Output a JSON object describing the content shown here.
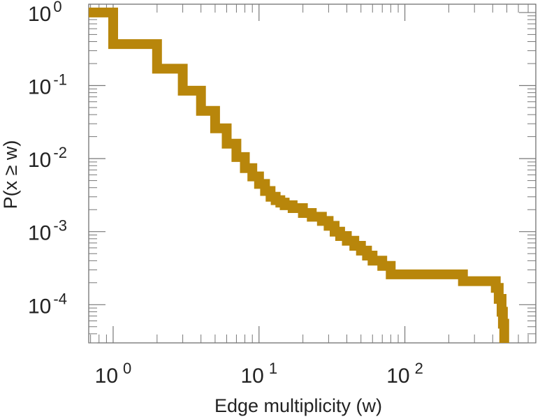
{
  "chart_data": {
    "type": "line",
    "step": true,
    "title": "",
    "xlabel": "Edge multiplicity (w)",
    "ylabel": "P(x ≥ w)",
    "xscale": "log",
    "yscale": "log",
    "xlim": [
      0.68,
      790
    ],
    "ylim": [
      3e-05,
      1.3
    ],
    "grid": false,
    "legend": "none",
    "line_color": "#b8860b",
    "x_ticks": [
      {
        "base": "10",
        "exp": "0",
        "value": 1
      },
      {
        "base": "10",
        "exp": "1",
        "value": 10
      },
      {
        "base": "10",
        "exp": "2",
        "value": 100
      }
    ],
    "y_ticks": [
      {
        "base": "10",
        "exp": "0",
        "value": 1
      },
      {
        "base": "10",
        "exp": "-1",
        "value": 0.1
      },
      {
        "base": "10",
        "exp": "-2",
        "value": 0.01
      },
      {
        "base": "10",
        "exp": "-3",
        "value": 0.001
      },
      {
        "base": "10",
        "exp": "-4",
        "value": 0.0001
      }
    ],
    "series": [
      {
        "x": [
          0.68,
          1,
          2,
          3,
          4,
          5,
          6,
          7,
          8,
          9,
          10,
          11,
          12,
          13,
          14,
          15,
          17,
          20,
          23,
          27,
          30,
          33,
          36,
          40,
          45,
          50,
          55,
          60,
          70,
          80,
          100,
          150,
          200,
          250,
          300,
          350,
          400,
          420,
          440,
          460,
          470,
          480
        ],
        "y": [
          1,
          0.37,
          0.17,
          0.085,
          0.045,
          0.026,
          0.016,
          0.0105,
          0.0074,
          0.0057,
          0.0045,
          0.0036,
          0.003,
          0.0027,
          0.0025,
          0.0023,
          0.0021,
          0.0018,
          0.0016,
          0.0014,
          0.0012,
          0.001,
          0.00087,
          0.00075,
          0.00064,
          0.00055,
          0.00047,
          0.0004,
          0.00034,
          0.00026,
          0.00026,
          0.00026,
          0.00026,
          0.00021,
          0.00021,
          0.00021,
          0.00021,
          0.00017,
          0.00012,
          8e-05,
          5.5e-05,
          4e-05
        ]
      }
    ]
  }
}
